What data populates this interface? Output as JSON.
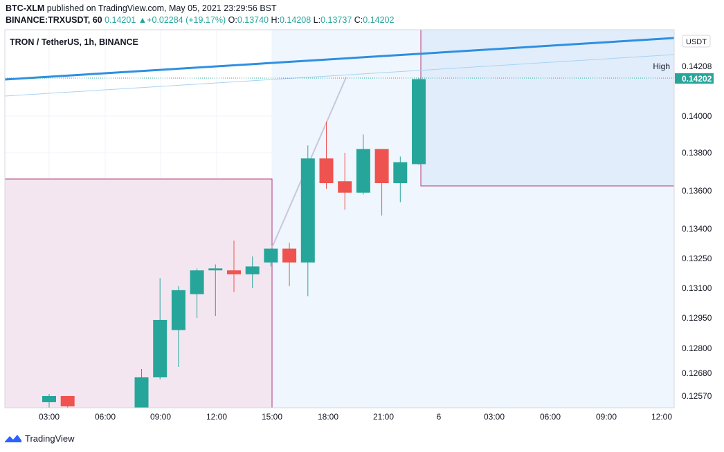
{
  "header": {
    "line1_symbol": "BTC-XLM",
    "line1_rest": " published on TradingView.com, May 05, 2021 23:29:56 BST",
    "line2_symbol": "BINANCE:TRXUSDT, 60",
    "line2_last": "0.14201",
    "line2_change": "+0.02284 (+19.17%)",
    "o_label": "O:",
    "o_value": "0.13740",
    "h_label": "H:",
    "h_value": "0.14208",
    "l_label": "L:",
    "l_value": "0.13737",
    "c_label": "C:",
    "c_value": "0.14202"
  },
  "chart_data": {
    "type": "candlestick",
    "title": "TRON / TetherUS, 1h, BINANCE",
    "currency": "USDT",
    "x_tick_labels": [
      "03:00",
      "06:00",
      "09:00",
      "12:00",
      "15:00",
      "18:00",
      "21:00",
      "6",
      "03:00",
      "06:00",
      "09:00",
      "12:00"
    ],
    "y_tick_labels": [
      "0.14000",
      "0.13800",
      "0.13600",
      "0.13400",
      "0.13250",
      "0.13100",
      "0.12950",
      "0.12800",
      "0.12680",
      "0.12570"
    ],
    "high_label": "High",
    "high_value": "0.14208",
    "last_value": "0.14202",
    "colors": {
      "up": "#26a69a",
      "down": "#ef5350",
      "trendline": "#2e8fe0",
      "box": "#b0387a"
    },
    "candles": [
      {
        "time": "03:00",
        "open": 0.1254,
        "high": 0.1258,
        "low": 0.125,
        "close": 0.1257
      },
      {
        "time": "04:00",
        "open": 0.1257,
        "high": 0.1257,
        "low": 0.125,
        "close": 0.1252
      },
      {
        "time": "08:00",
        "open": 0.125,
        "high": 0.127,
        "low": 0.125,
        "close": 0.1266
      },
      {
        "time": "09:00",
        "open": 0.1266,
        "high": 0.1315,
        "low": 0.1265,
        "close": 0.1294
      },
      {
        "time": "10:00",
        "open": 0.1289,
        "high": 0.1311,
        "low": 0.1271,
        "close": 0.1309
      },
      {
        "time": "11:00",
        "open": 0.1307,
        "high": 0.132,
        "low": 0.1295,
        "close": 0.1319
      },
      {
        "time": "12:00",
        "open": 0.1319,
        "high": 0.1322,
        "low": 0.1296,
        "close": 0.132
      },
      {
        "time": "13:00",
        "open": 0.1319,
        "high": 0.1334,
        "low": 0.1308,
        "close": 0.1317
      },
      {
        "time": "14:00",
        "open": 0.1317,
        "high": 0.1326,
        "low": 0.131,
        "close": 0.1321
      },
      {
        "time": "15:00",
        "open": 0.1323,
        "high": 0.1329,
        "low": 0.1321,
        "close": 0.133
      },
      {
        "time": "16:00",
        "open": 0.133,
        "high": 0.1333,
        "low": 0.1311,
        "close": 0.1323
      },
      {
        "time": "17:00",
        "open": 0.1323,
        "high": 0.1384,
        "low": 0.1306,
        "close": 0.1377
      },
      {
        "time": "18:00",
        "open": 0.1377,
        "high": 0.1397,
        "low": 0.1361,
        "close": 0.1364
      },
      {
        "time": "19:00",
        "open": 0.1365,
        "high": 0.138,
        "low": 0.135,
        "close": 0.1359
      },
      {
        "time": "20:00",
        "open": 0.1359,
        "high": 0.139,
        "low": 0.1358,
        "close": 0.1382
      },
      {
        "time": "21:00",
        "open": 0.1382,
        "high": 0.1382,
        "low": 0.1347,
        "close": 0.1364
      },
      {
        "time": "22:00",
        "open": 0.1364,
        "high": 0.1378,
        "low": 0.1354,
        "close": 0.1375
      },
      {
        "time": "23:00",
        "open": 0.1374,
        "high": 0.14208,
        "low": 0.13737,
        "close": 0.14202
      }
    ]
  },
  "footer": {
    "brand": "TradingView"
  }
}
